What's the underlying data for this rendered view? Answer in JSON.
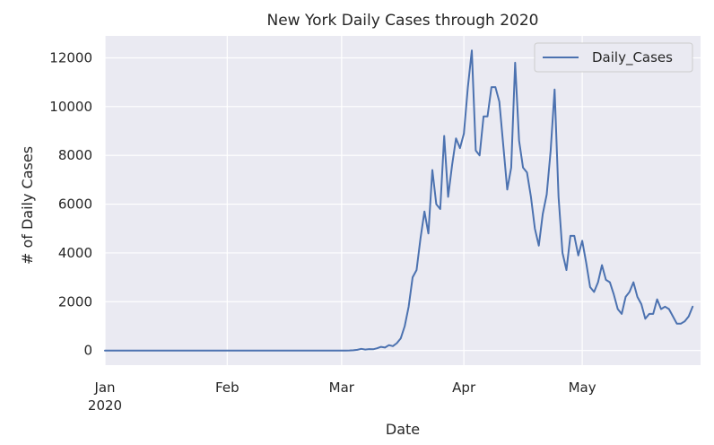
{
  "chart_data": {
    "type": "line",
    "title": "New York Daily Cases through 2020",
    "xlabel": "Date",
    "ylabel": "# of Daily Cases",
    "x_range": [
      "2020-01-01",
      "2020-05-31"
    ],
    "ylim": [
      -600,
      12900
    ],
    "grid": true,
    "legend_position": "top-right",
    "background_color": "#eaeaf2",
    "grid_color": "#ffffff",
    "line_color": "#4c72b0",
    "x_ticks": [
      {
        "date": "2020-01-01",
        "label": "Jan",
        "sublabel": "2020"
      },
      {
        "date": "2020-02-01",
        "label": "Feb",
        "sublabel": ""
      },
      {
        "date": "2020-03-01",
        "label": "Mar",
        "sublabel": ""
      },
      {
        "date": "2020-04-01",
        "label": "Apr",
        "sublabel": ""
      },
      {
        "date": "2020-05-01",
        "label": "May",
        "sublabel": ""
      }
    ],
    "y_ticks": [
      0,
      2000,
      4000,
      6000,
      8000,
      10000,
      12000
    ],
    "y_tick_labels": [
      "0",
      "2000",
      "4000",
      "6000",
      "8000",
      "10000",
      "12000"
    ],
    "series": [
      {
        "name": "Daily_Cases",
        "points": [
          [
            "2020-01-01",
            0
          ],
          [
            "2020-02-01",
            0
          ],
          [
            "2020-03-01",
            0
          ],
          [
            "2020-03-02",
            1
          ],
          [
            "2020-03-03",
            5
          ],
          [
            "2020-03-04",
            10
          ],
          [
            "2020-03-05",
            30
          ],
          [
            "2020-03-06",
            70
          ],
          [
            "2020-03-07",
            40
          ],
          [
            "2020-03-08",
            60
          ],
          [
            "2020-03-09",
            50
          ],
          [
            "2020-03-10",
            90
          ],
          [
            "2020-03-11",
            150
          ],
          [
            "2020-03-12",
            120
          ],
          [
            "2020-03-13",
            220
          ],
          [
            "2020-03-14",
            180
          ],
          [
            "2020-03-15",
            300
          ],
          [
            "2020-03-16",
            500
          ],
          [
            "2020-03-17",
            1000
          ],
          [
            "2020-03-18",
            1800
          ],
          [
            "2020-03-19",
            3000
          ],
          [
            "2020-03-20",
            3300
          ],
          [
            "2020-03-21",
            4600
          ],
          [
            "2020-03-22",
            5700
          ],
          [
            "2020-03-23",
            4800
          ],
          [
            "2020-03-24",
            7400
          ],
          [
            "2020-03-25",
            6000
          ],
          [
            "2020-03-26",
            5800
          ],
          [
            "2020-03-27",
            8800
          ],
          [
            "2020-03-28",
            6300
          ],
          [
            "2020-03-29",
            7600
          ],
          [
            "2020-03-30",
            8700
          ],
          [
            "2020-03-31",
            8300
          ],
          [
            "2020-04-01",
            8900
          ],
          [
            "2020-04-02",
            10800
          ],
          [
            "2020-04-03",
            12300
          ],
          [
            "2020-04-04",
            8200
          ],
          [
            "2020-04-05",
            8000
          ],
          [
            "2020-04-06",
            9600
          ],
          [
            "2020-04-07",
            9600
          ],
          [
            "2020-04-08",
            10800
          ],
          [
            "2020-04-09",
            10800
          ],
          [
            "2020-04-10",
            10200
          ],
          [
            "2020-04-11",
            8400
          ],
          [
            "2020-04-12",
            6600
          ],
          [
            "2020-04-13",
            7500
          ],
          [
            "2020-04-14",
            11800
          ],
          [
            "2020-04-15",
            8600
          ],
          [
            "2020-04-16",
            7500
          ],
          [
            "2020-04-17",
            7300
          ],
          [
            "2020-04-18",
            6300
          ],
          [
            "2020-04-19",
            5000
          ],
          [
            "2020-04-20",
            4300
          ],
          [
            "2020-04-21",
            5600
          ],
          [
            "2020-04-22",
            6400
          ],
          [
            "2020-04-23",
            8200
          ],
          [
            "2020-04-24",
            10700
          ],
          [
            "2020-04-25",
            6300
          ],
          [
            "2020-04-26",
            4000
          ],
          [
            "2020-04-27",
            3300
          ],
          [
            "2020-04-28",
            4700
          ],
          [
            "2020-04-29",
            4700
          ],
          [
            "2020-04-30",
            3900
          ],
          [
            "2020-05-01",
            4500
          ],
          [
            "2020-05-02",
            3600
          ],
          [
            "2020-05-03",
            2600
          ],
          [
            "2020-05-04",
            2400
          ],
          [
            "2020-05-05",
            2800
          ],
          [
            "2020-05-06",
            3500
          ],
          [
            "2020-05-07",
            2900
          ],
          [
            "2020-05-08",
            2800
          ],
          [
            "2020-05-09",
            2300
          ],
          [
            "2020-05-10",
            1700
          ],
          [
            "2020-05-11",
            1500
          ],
          [
            "2020-05-12",
            2200
          ],
          [
            "2020-05-13",
            2400
          ],
          [
            "2020-05-14",
            2800
          ],
          [
            "2020-05-15",
            2200
          ],
          [
            "2020-05-16",
            1900
          ],
          [
            "2020-05-17",
            1300
          ],
          [
            "2020-05-18",
            1500
          ],
          [
            "2020-05-19",
            1500
          ],
          [
            "2020-05-20",
            2100
          ],
          [
            "2020-05-21",
            1700
          ],
          [
            "2020-05-22",
            1800
          ],
          [
            "2020-05-23",
            1700
          ],
          [
            "2020-05-24",
            1400
          ],
          [
            "2020-05-25",
            1100
          ],
          [
            "2020-05-26",
            1100
          ],
          [
            "2020-05-27",
            1200
          ],
          [
            "2020-05-28",
            1400
          ],
          [
            "2020-05-29",
            1800
          ]
        ]
      }
    ]
  }
}
